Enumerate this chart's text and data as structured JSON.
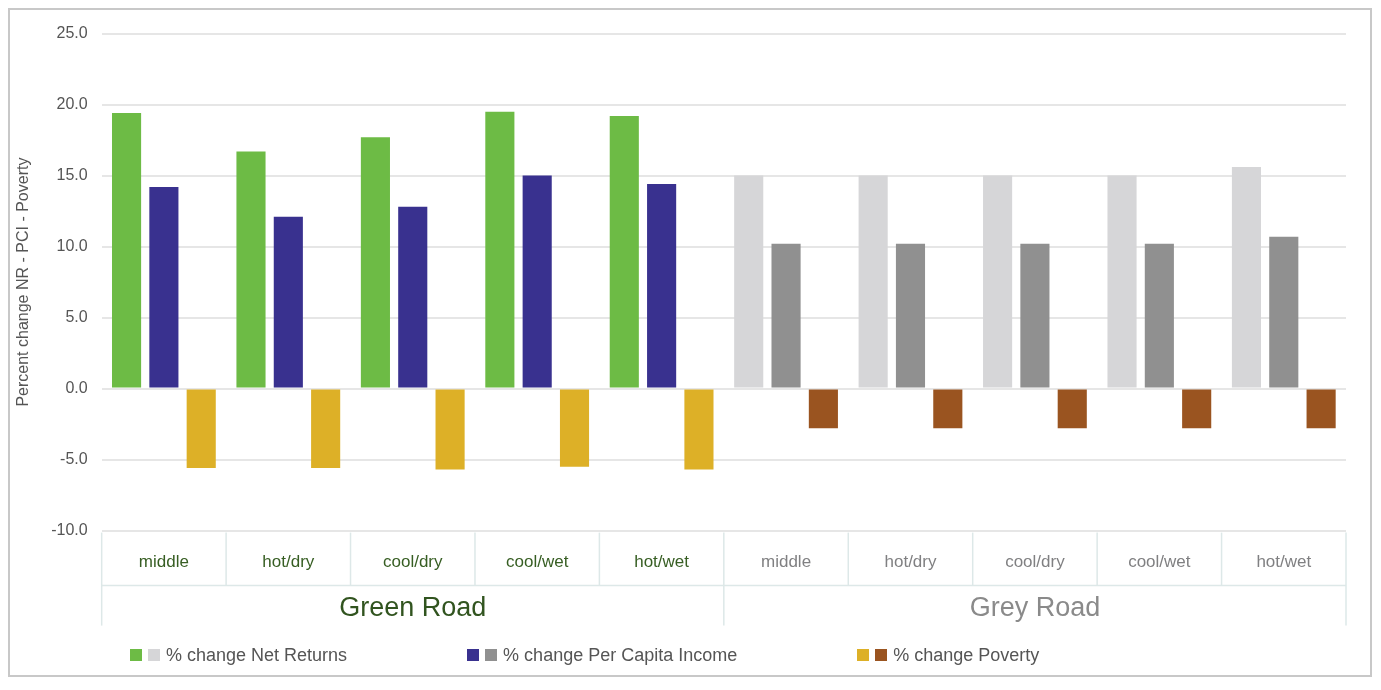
{
  "chart_data": {
    "type": "bar",
    "ylabel": "Percent change NR - PCI - Poverty",
    "categories": [
      "middle",
      "hot/dry",
      "cool/dry",
      "cool/wet",
      "hot/wet",
      "middle",
      "hot/dry",
      "cool/dry",
      "cool/wet",
      "hot/wet"
    ],
    "annotations": [
      "Green Road",
      "Grey Road"
    ],
    "series": [
      {
        "name": "% change Net Returns",
        "colors": [
          "#6dbb45",
          "#6dbb45",
          "#6dbb45",
          "#6dbb45",
          "#6dbb45",
          "#d6d6d8",
          "#d6d6d8",
          "#d6d6d8",
          "#d6d6d8",
          "#d6d6d8"
        ],
        "values": [
          19.4,
          16.7,
          17.7,
          19.5,
          19.2,
          15.0,
          15.0,
          15.0,
          15.0,
          15.6
        ]
      },
      {
        "name": "% change Per Capita Income",
        "colors": [
          "#39318f",
          "#39318f",
          "#39318f",
          "#39318f",
          "#39318f",
          "#909090",
          "#909090",
          "#909090",
          "#909090",
          "#909090"
        ],
        "values": [
          14.2,
          12.1,
          12.8,
          15.0,
          14.4,
          10.2,
          10.2,
          10.2,
          10.2,
          10.7
        ]
      },
      {
        "name": "% change Poverty",
        "colors": [
          "#ddb027",
          "#ddb027",
          "#ddb027",
          "#ddb027",
          "#ddb027",
          "#9a5420",
          "#9a5420",
          "#9a5420",
          "#9a5420",
          "#9a5420"
        ],
        "values": [
          -5.6,
          -5.6,
          -5.7,
          -5.5,
          -5.7,
          -2.8,
          -2.8,
          -2.8,
          -2.8,
          -2.8
        ]
      }
    ],
    "ylim": [
      -10,
      25
    ],
    "yticks": [
      {
        "value": -10,
        "label": "-10.0"
      },
      {
        "value": -5,
        "label": "-5.0"
      },
      {
        "value": 0,
        "label": "0.0"
      },
      {
        "value": 5,
        "label": "5.0"
      },
      {
        "value": 10,
        "label": "10.0"
      },
      {
        "value": 15,
        "label": "15.0"
      },
      {
        "value": 20,
        "label": "20.0"
      },
      {
        "value": 25,
        "label": "25.0"
      }
    ],
    "grid": "y",
    "legend": "bottom"
  }
}
